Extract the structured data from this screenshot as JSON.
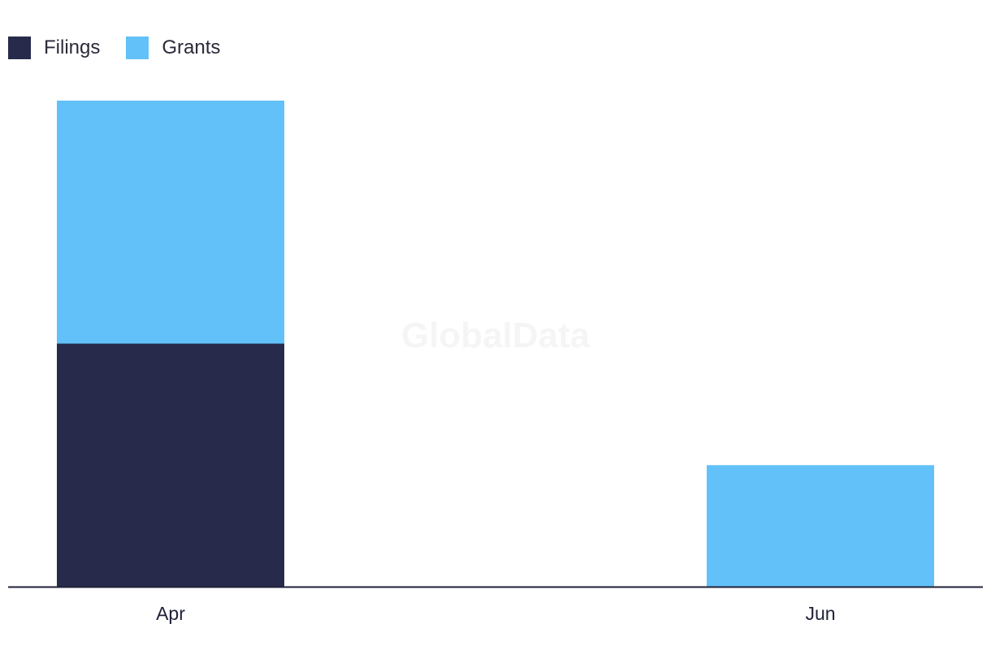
{
  "chart_data": {
    "type": "bar",
    "stacked": true,
    "categories": [
      "Apr",
      "Jun"
    ],
    "series": [
      {
        "name": "Filings",
        "color": "#272a4a",
        "values": [
          2,
          0
        ]
      },
      {
        "name": "Grants",
        "color": "#62c1f9",
        "values": [
          2,
          1
        ]
      }
    ],
    "ylim": [
      0,
      4
    ],
    "legend_position": "top-left",
    "grid": false,
    "title": "",
    "xlabel": "",
    "ylabel": "",
    "axis_color": "#1f2238"
  },
  "watermark": "GlobalData"
}
